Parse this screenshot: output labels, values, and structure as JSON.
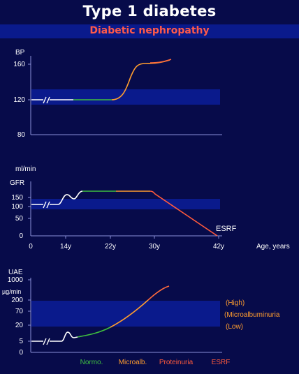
{
  "header": {
    "title": "Type 1 diabetes",
    "subtitle": "Diabetic nephropathy"
  },
  "panels": {
    "bp": {
      "label": "BP",
      "ticks": [
        "160",
        "120",
        "80"
      ]
    },
    "gfr": {
      "unit": "ml/min",
      "label": "GFR",
      "ticks": [
        "150",
        "100",
        "50",
        "0"
      ],
      "x_ticks": [
        "0",
        "14y",
        "22y",
        "30y",
        "42y"
      ],
      "x_label": "Age, years",
      "endpoint_label": "ESRF"
    },
    "uae": {
      "label": "UAE",
      "unit": "µg/min",
      "ticks": [
        "1000",
        "200",
        "70",
        "20",
        "5",
        "0"
      ],
      "levels": [
        "(High)",
        "(Microalbuminuria",
        "(Low)"
      ]
    }
  },
  "stages": [
    {
      "label": "Normo.",
      "color": "#3fbf3f"
    },
    {
      "label": "Microalb.",
      "color": "#ff9d2e"
    },
    {
      "label": "Proteinuria",
      "color": "#ff5a3c"
    },
    {
      "label": "ESRF",
      "color": "#ff5a3c"
    }
  ],
  "colors": {
    "background": "#070b4a",
    "band": "#0a1a8c",
    "normo": "#3fbf3f",
    "microalb": "#ff9d2e",
    "proteinuria": "#ff5a3c"
  }
}
